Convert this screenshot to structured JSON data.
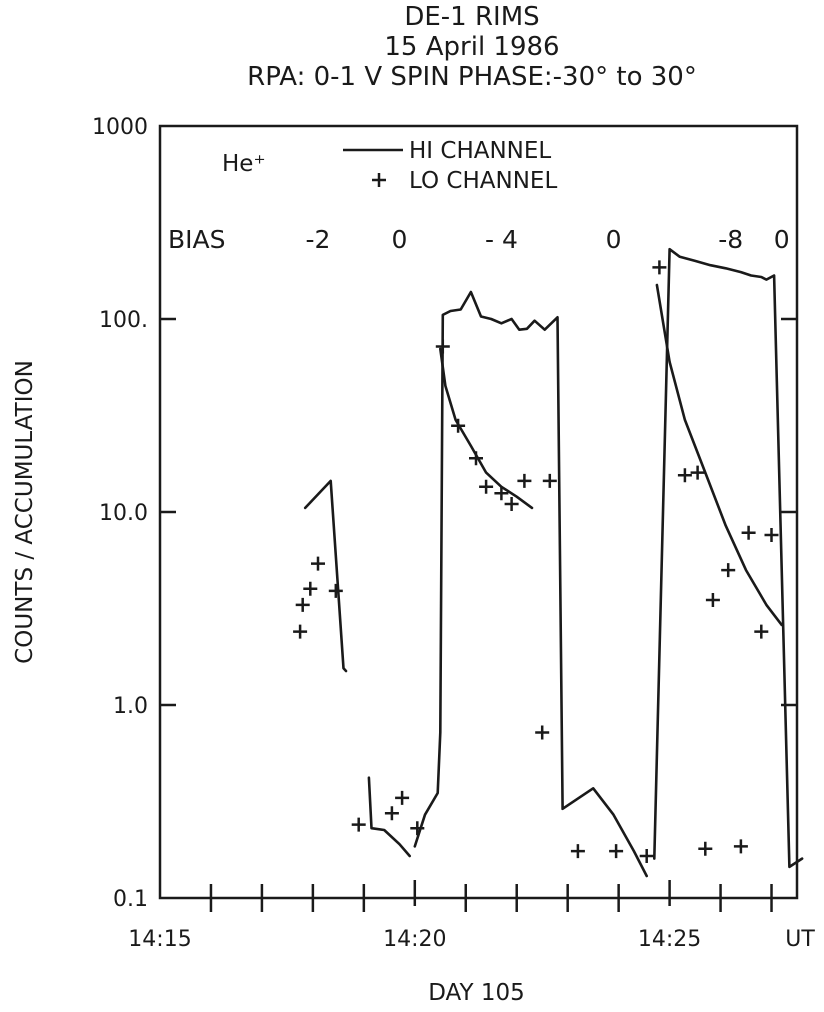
{
  "chart_data": {
    "type": "line",
    "title_lines": [
      "DE-1  RIMS",
      "15 April 1986",
      "RPA: 0-1 V     SPIN PHASE:-30° to 30°"
    ],
    "xlabel": "DAY 105",
    "x_unit_label": "UT",
    "ylabel": "COUNTS / ACCUMULATION",
    "y_scale": "log",
    "ylim": [
      0.1,
      1000
    ],
    "xlim": [
      "14:15",
      "14:27.5"
    ],
    "y_ticks": [
      {
        "value": 0.1,
        "label": "0.1"
      },
      {
        "value": 1,
        "label": "1.0"
      },
      {
        "value": 10,
        "label": "10.0"
      },
      {
        "value": 100,
        "label": "100."
      },
      {
        "value": 1000,
        "label": "1000"
      }
    ],
    "x_ticks": [
      {
        "value": "14:15",
        "label": "14:15"
      },
      {
        "value": "14:20",
        "label": "14:20"
      },
      {
        "value": "14:25",
        "label": "14:25"
      }
    ],
    "species": "He⁺",
    "legend": [
      {
        "symbol": "line",
        "label": "HI CHANNEL"
      },
      {
        "symbol": "plus",
        "label": "LO CHANNEL"
      }
    ],
    "bias_label": "BIAS",
    "bias_values": [
      {
        "label": "-2",
        "x": "14:18.1"
      },
      {
        "label": "0",
        "x": "14:19.7"
      },
      {
        "label": "- 4",
        "x": "14:21.7"
      },
      {
        "label": "0",
        "x": "14:23.9"
      },
      {
        "label": "-8",
        "x": "14:26.2"
      },
      {
        "label": "0",
        "x": "14:27.2"
      }
    ],
    "series": [
      {
        "name": "HI CHANNEL",
        "style": "line",
        "segments": [
          [
            [
              "14:17.85",
              10.5
            ],
            [
              "14:18.35",
              14.5
            ],
            [
              "14:18.6",
              1.55
            ],
            [
              "14:18.65",
              1.5
            ]
          ],
          [
            [
              "14:19.1",
              0.42
            ],
            [
              "14:19.15",
              0.23
            ],
            [
              "14:19.4",
              0.225
            ],
            [
              "14:19.7",
              0.19
            ],
            [
              "14:19.9",
              0.165
            ]
          ],
          [
            [
              "14:20.0",
              0.185
            ],
            [
              "14:20.2",
              0.27
            ],
            [
              "14:20.45",
              0.35
            ],
            [
              "14:20.5",
              0.72
            ],
            [
              "14:20.55",
              105
            ],
            [
              "14:20.7",
              110
            ],
            [
              "14:20.9",
              112
            ],
            [
              "14:21.1",
              138
            ],
            [
              "14:21.3",
              103
            ],
            [
              "14:21.5",
              100
            ],
            [
              "14:21.7",
              95
            ],
            [
              "14:21.9",
              100
            ],
            [
              "14:22.05",
              88
            ],
            [
              "14:22.2",
              89
            ],
            [
              "14:22.35",
              98
            ],
            [
              "14:22.55",
              88
            ],
            [
              "14:22.8",
              102
            ],
            [
              "14:22.9",
              0.29
            ],
            [
              "14:23.5",
              0.37
            ],
            [
              "14:23.9",
              0.27
            ],
            [
              "14:24.3",
              0.175
            ],
            [
              "14:24.55",
              0.13
            ]
          ],
          [
            [
              "14:24.7",
              0.16
            ],
            [
              "14:25.0",
              230
            ],
            [
              "14:25.2",
              210
            ],
            [
              "14:25.5",
              200
            ],
            [
              "14:25.8",
              190
            ],
            [
              "14:26.1",
              183
            ],
            [
              "14:26.4",
              175
            ],
            [
              "14:26.6",
              168
            ],
            [
              "14:26.8",
              165
            ],
            [
              "14:26.9",
              160
            ],
            [
              "14:27.05",
              168
            ],
            [
              "14:27.35",
              0.145
            ],
            [
              "14:27.6",
              0.16
            ]
          ]
        ]
      },
      {
        "name": "HI CHANNEL (decay)",
        "style": "line",
        "segments": [
          [
            [
              "14:20.5",
              70
            ],
            [
              "14:20.6",
              45
            ],
            [
              "14:20.8",
              30
            ],
            [
              "14:21.1",
              22
            ],
            [
              "14:21.4",
              16
            ],
            [
              "14:21.7",
              13.5
            ],
            [
              "14:22.0",
              12
            ],
            [
              "14:22.3",
              10.5
            ]
          ],
          [
            [
              "14:24.75",
              150
            ],
            [
              "14:25.0",
              60
            ],
            [
              "14:25.3",
              30
            ],
            [
              "14:25.7",
              16
            ],
            [
              "14:26.1",
              8.5
            ],
            [
              "14:26.5",
              5
            ],
            [
              "14:26.9",
              3.3
            ],
            [
              "14:27.2",
              2.6
            ]
          ]
        ]
      },
      {
        "name": "LO CHANNEL",
        "style": "plus",
        "points": [
          [
            "14:17.75",
            2.4
          ],
          [
            "14:17.8",
            3.3
          ],
          [
            "14:17.95",
            4.0
          ],
          [
            "14:18.1",
            5.4
          ],
          [
            "14:18.45",
            3.9
          ],
          [
            "14:18.9",
            0.24
          ],
          [
            "14:19.55",
            0.275
          ],
          [
            "14:19.75",
            0.33
          ],
          [
            "14:20.05",
            0.23
          ],
          [
            "14:20.55",
            72
          ],
          [
            "14:20.85",
            28
          ],
          [
            "14:21.2",
            19
          ],
          [
            "14:21.4",
            13.5
          ],
          [
            "14:21.7",
            12.5
          ],
          [
            "14:21.9",
            11.0
          ],
          [
            "14:22.15",
            14.5
          ],
          [
            "14:22.65",
            14.5
          ],
          [
            "14:22.5",
            0.72
          ],
          [
            "14:23.2",
            0.175
          ],
          [
            "14:23.95",
            0.175
          ],
          [
            "14:24.55",
            0.165
          ],
          [
            "14:24.8",
            185
          ],
          [
            "14:25.3",
            15.5
          ],
          [
            "14:25.55",
            16
          ],
          [
            "14:25.85",
            3.5
          ],
          [
            "14:26.15",
            5
          ],
          [
            "14:26.55",
            7.8
          ],
          [
            "14:26.8",
            2.4
          ],
          [
            "14:27.0",
            7.6
          ],
          [
            "14:25.7",
            0.18
          ],
          [
            "14:26.4",
            0.185
          ]
        ]
      }
    ]
  }
}
